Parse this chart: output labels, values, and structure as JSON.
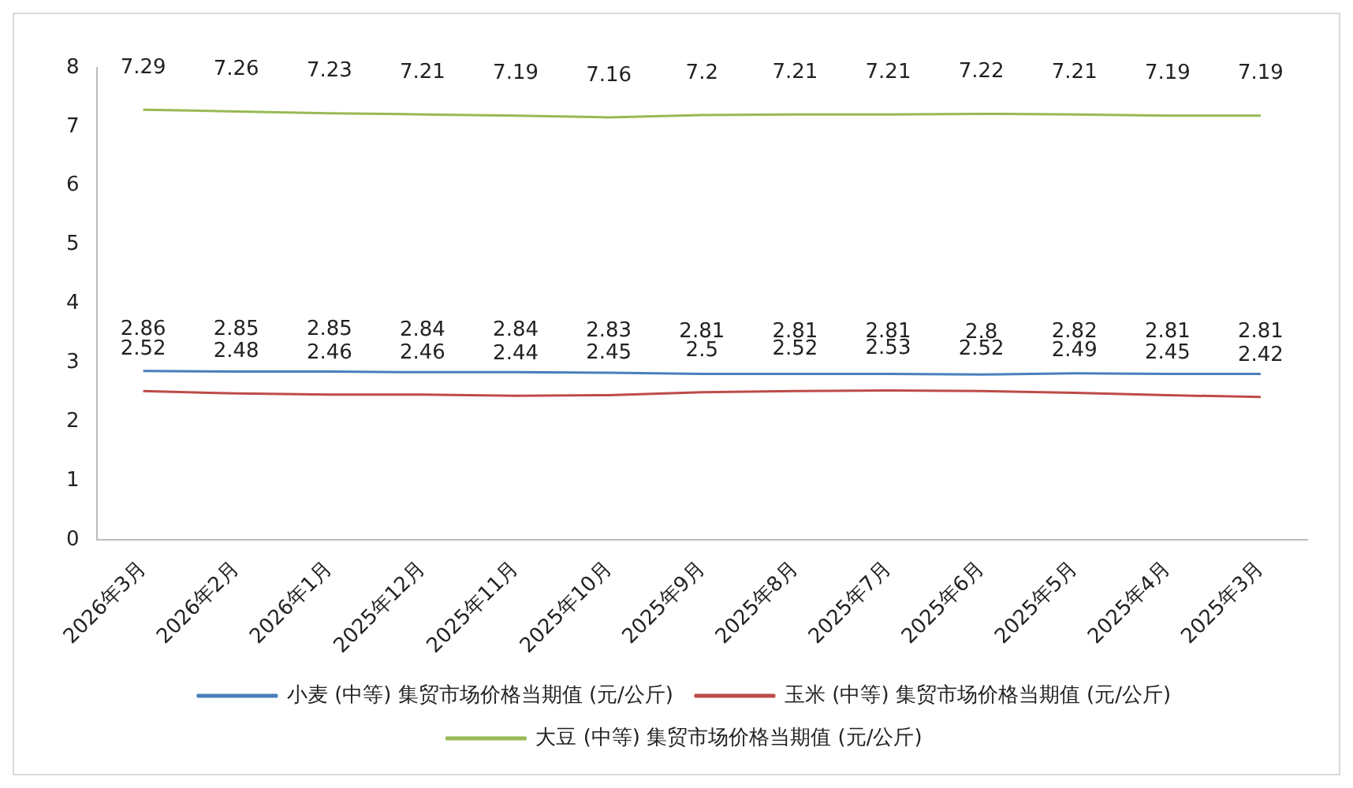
{
  "chart_data": {
    "type": "line",
    "categories": [
      "2026年3月",
      "2026年2月",
      "2026年1月",
      "2025年12月",
      "2025年11月",
      "2025年10月",
      "2025年9月",
      "2025年8月",
      "2025年7月",
      "2025年6月",
      "2025年5月",
      "2025年4月",
      "2025年3月"
    ],
    "series": [
      {
        "name": "小麦 (中等) 集贸市场价格当期值 (元/公斤)",
        "color": "#4a7ebb",
        "values": [
          2.86,
          2.85,
          2.85,
          2.84,
          2.84,
          2.83,
          2.81,
          2.81,
          2.81,
          2.8,
          2.82,
          2.81,
          2.81
        ]
      },
      {
        "name": "玉米 (中等) 集贸市场价格当期值 (元/公斤)",
        "color": "#be4b48",
        "values": [
          2.52,
          2.48,
          2.46,
          2.46,
          2.44,
          2.45,
          2.5,
          2.52,
          2.53,
          2.52,
          2.49,
          2.45,
          2.42
        ]
      },
      {
        "name": "大豆 (中等) 集贸市场价格当期值 (元/公斤)",
        "color": "#98b954",
        "values": [
          7.29,
          7.26,
          7.23,
          7.21,
          7.19,
          7.16,
          7.2,
          7.21,
          7.21,
          7.22,
          7.21,
          7.19,
          7.19
        ]
      }
    ],
    "ylim": [
      0,
      8
    ],
    "yticks": [
      0,
      1,
      2,
      3,
      4,
      5,
      6,
      7,
      8
    ],
    "grid": false,
    "legend": "bottom",
    "data_labels": true,
    "marker": "none",
    "line_style": "solid"
  }
}
